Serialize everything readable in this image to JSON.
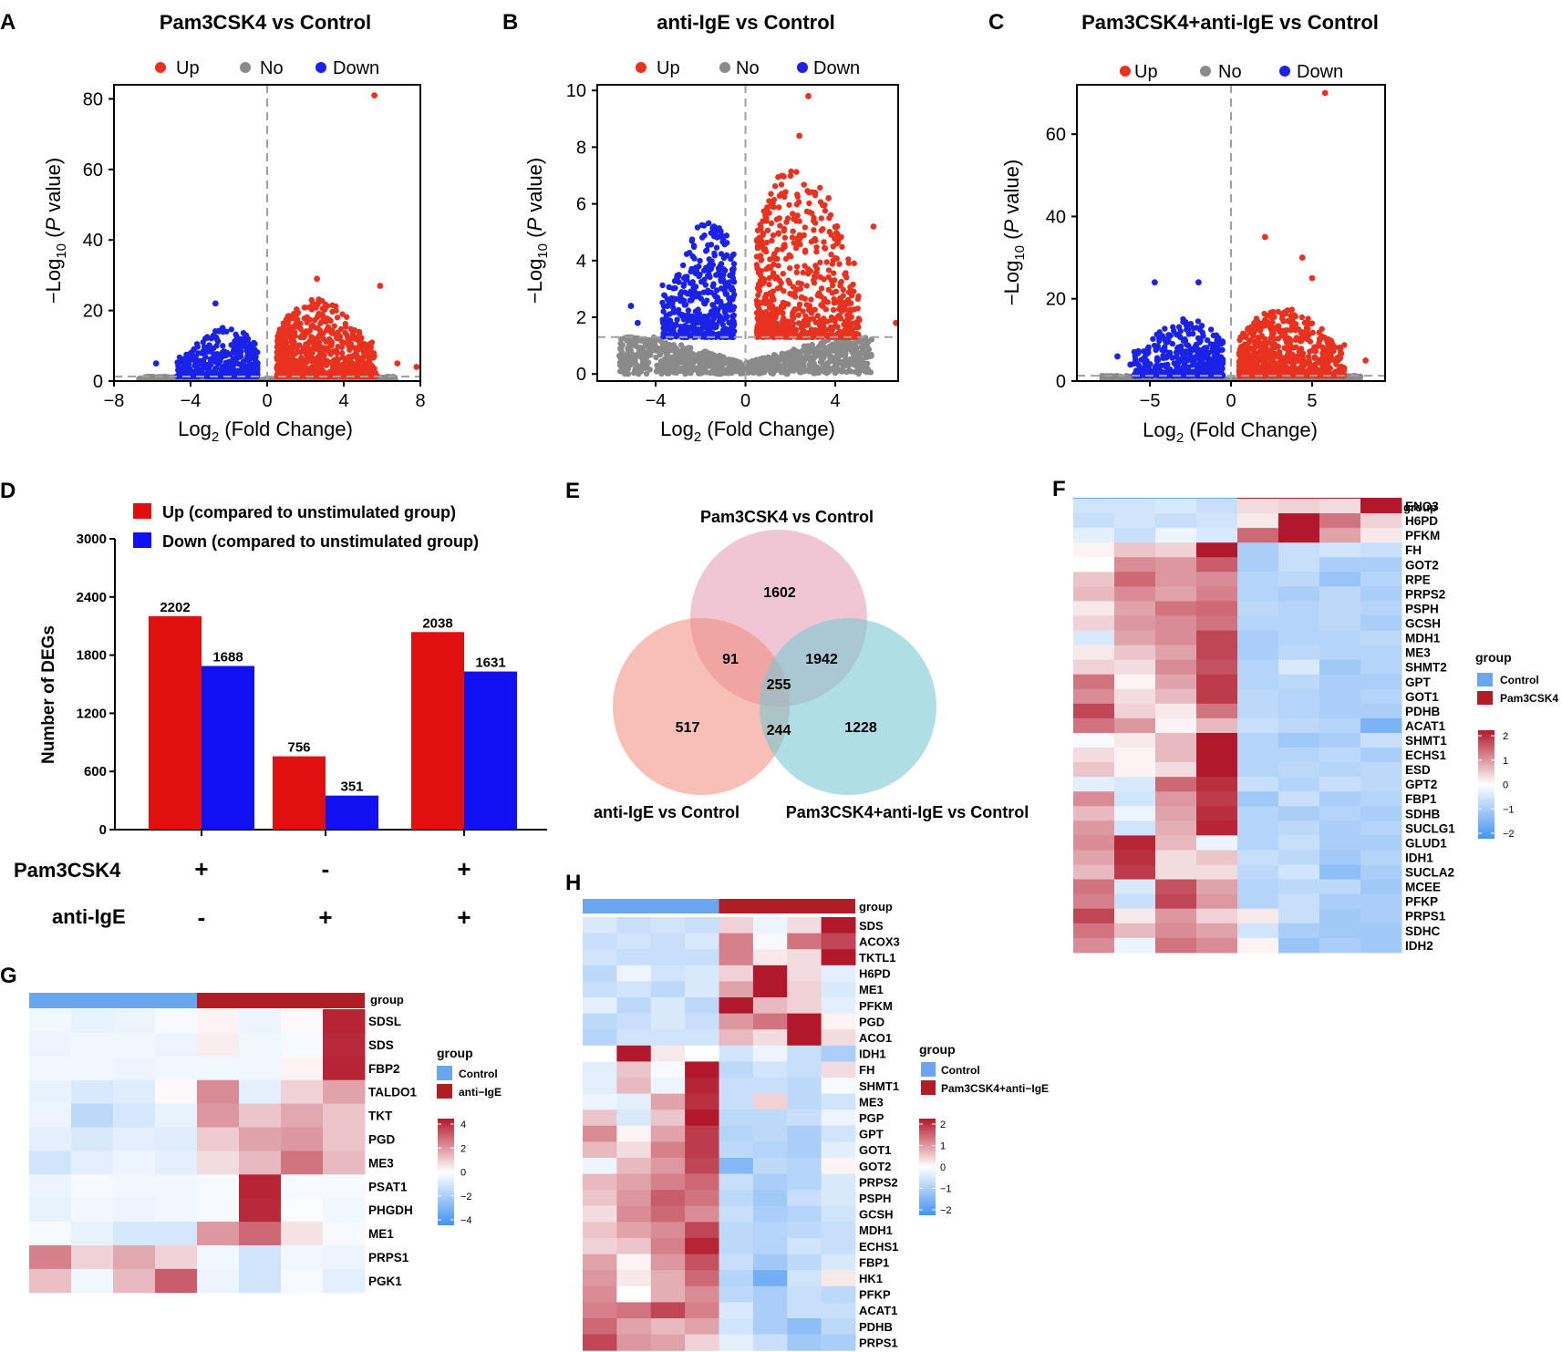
{
  "colors": {
    "up": "#e8321f",
    "no": "#8a8a8a",
    "down": "#1a22e6",
    "bar_up": "#e01010",
    "bar_down": "#1010f0",
    "control": "#6aa6ee",
    "treat": "#b11d24",
    "venn_a": "#e8a0b8",
    "venn_b": "#f08a78",
    "venn_c": "#7cc8d4"
  },
  "volcano_legend": {
    "up": "Up",
    "no": "No",
    "down": "Down"
  },
  "volcanoes": [
    {
      "letter": "A",
      "title": "Pam3CSK4 vs Control",
      "xlabel_main": "Log",
      "xlabel_sub": "2",
      "xlabel_rest": " (Fold Change)",
      "ylabel_a": "−Log",
      "ylabel_sub": "10",
      "ylabel_b": " (",
      "ylabel_p": "P",
      "ylabel_c": " value)",
      "xlim": [
        -8,
        8
      ],
      "ylim": [
        0,
        84
      ],
      "xticks": [
        -8,
        -4,
        0,
        4,
        8
      ],
      "xtick_labels": [
        "−8",
        "−4",
        "0",
        "4",
        "8"
      ],
      "yticks": [
        0,
        20,
        40,
        60,
        80
      ],
      "ytick_labels": [
        "0",
        "20",
        "40",
        "60",
        "80"
      ],
      "pthresh": 1.3,
      "up_spread": 5.2,
      "up_peak": 22,
      "down_spread": 4.2,
      "down_peak": 14,
      "up_points": [
        [
          5.6,
          81
        ],
        [
          2.6,
          29
        ],
        [
          5.9,
          27
        ],
        [
          7.8,
          4
        ],
        [
          6.8,
          5
        ]
      ],
      "down_points": [
        [
          -2.7,
          22
        ],
        [
          -5.8,
          5
        ],
        [
          -4.5,
          3
        ]
      ]
    },
    {
      "letter": "B",
      "title": "anti-IgE vs Control",
      "xlabel_main": "Log",
      "xlabel_sub": "2",
      "xlabel_rest": " (Fold Change)",
      "ylabel_a": "−Log",
      "ylabel_sub": "10",
      "ylabel_b": " (",
      "ylabel_p": "P",
      "ylabel_c": " value)",
      "xlim": [
        -6.6,
        6.8
      ],
      "ylim": [
        -0.25,
        10.2
      ],
      "xticks": [
        -4,
        0,
        4
      ],
      "xtick_labels": [
        "−4",
        "0",
        "4"
      ],
      "yticks": [
        0,
        2,
        4,
        6,
        8,
        10
      ],
      "ytick_labels": [
        "0",
        "2",
        "4",
        "6",
        "8",
        "10"
      ],
      "pthresh": 1.3,
      "up_spread": 4.6,
      "up_peak": 6.2,
      "down_spread": 3.2,
      "down_peak": 4.2,
      "up_points": [
        [
          2.8,
          9.8
        ],
        [
          2.4,
          8.4
        ],
        [
          3.7,
          6.2
        ],
        [
          5.7,
          5.2
        ],
        [
          6.7,
          1.8
        ]
      ],
      "down_points": [
        [
          -1.4,
          5.2
        ],
        [
          -5.1,
          2.4
        ],
        [
          -4.8,
          1.8
        ]
      ]
    },
    {
      "letter": "C",
      "title": "Pam3CSK4+anti-IgE vs Control",
      "xlabel_main": "Log",
      "xlabel_sub": "2",
      "xlabel_rest": " (Fold Change)",
      "ylabel_a": "−Log",
      "ylabel_sub": "10",
      "ylabel_b": " (",
      "ylabel_p": "P",
      "ylabel_c": " value)",
      "xlim": [
        -9.5,
        9.5
      ],
      "ylim": [
        0,
        72
      ],
      "xticks": [
        -5,
        0,
        5
      ],
      "xtick_labels": [
        "−5",
        "0",
        "5"
      ],
      "yticks": [
        0,
        20,
        40,
        60
      ],
      "ytick_labels": [
        "0",
        "20",
        "40",
        "60"
      ],
      "pthresh": 1.3,
      "up_spread": 6.5,
      "up_peak": 17,
      "down_spread": 5.5,
      "down_peak": 14,
      "up_points": [
        [
          5.8,
          70
        ],
        [
          2.1,
          35
        ],
        [
          4.4,
          30
        ],
        [
          5.0,
          25
        ],
        [
          8.3,
          5
        ]
      ],
      "down_points": [
        [
          -2.0,
          24
        ],
        [
          -4.7,
          24
        ],
        [
          -7.0,
          6
        ],
        [
          -6.2,
          4
        ]
      ]
    }
  ],
  "bar_chart": {
    "letter": "D",
    "ylabel": "Number of DEGs",
    "legend_up": "Up (compared to unstimulated group)",
    "legend_down": "Down (compared to unstimulated group)",
    "yticks": [
      0,
      600,
      1200,
      1800,
      2400,
      3000
    ],
    "ytick_labels": [
      "0",
      "600",
      "1200",
      "1800",
      "2400",
      "3000"
    ],
    "ylim": [
      0,
      3000
    ],
    "groups": [
      {
        "up": 2202,
        "down": 1688,
        "up_label": "2202",
        "down_label": "1688"
      },
      {
        "up": 756,
        "down": 351,
        "up_label": "756",
        "down_label": "351"
      },
      {
        "up": 2038,
        "down": 1631,
        "up_label": "2038",
        "down_label": "1631"
      }
    ],
    "row1_label": "Pam3CSK4",
    "row1_signs": [
      "+",
      "-",
      "+"
    ],
    "row2_label": "anti-IgE",
    "row2_signs": [
      "-",
      "+",
      "+"
    ]
  },
  "venn": {
    "letter": "E",
    "label_a": "Pam3CSK4 vs Control",
    "label_b": "anti-IgE vs Control",
    "label_c": "Pam3CSK4+anti-IgE vs Control",
    "only_a": "1602",
    "a_b": "91",
    "a_c": "1942",
    "abc": "255",
    "only_b": "517",
    "b_c": "244",
    "only_c": "1228"
  },
  "heatmaps": [
    {
      "letter": "F",
      "group_label": "group",
      "legend_title": "group",
      "legend_control": "Control",
      "legend_treat": "Pam3CSK4",
      "scale_labels": [
        "2",
        "1",
        "0",
        "−1",
        "−2"
      ],
      "scale_max": 2,
      "genes": [
        "ENO3",
        "H6PD",
        "PFKM",
        "FH",
        "GOT2",
        "RPE",
        "PRPS2",
        "PSPH",
        "GCSH",
        "MDH1",
        "ME3",
        "SHMT2",
        "GPT",
        "GOT1",
        "PDHB",
        "ACAT1",
        "SHMT1",
        "ECHS1",
        "ESD",
        "GPT2",
        "FBP1",
        "SDHB",
        "SUCLG1",
        "GLUD1",
        "IDH1",
        "SUCLA2",
        "MCEE",
        "PFKP",
        "PRPS1",
        "SDHC",
        "IDH2"
      ],
      "values": [
        [
          -0.5,
          -0.5,
          -0.4,
          -0.6,
          0.3,
          0.4,
          0.3,
          2.1
        ],
        [
          -0.6,
          -0.5,
          -0.6,
          -0.5,
          0.2,
          2.0,
          1.2,
          0.4
        ],
        [
          -0.3,
          -0.6,
          -0.2,
          -0.4,
          1.3,
          2.0,
          0.8,
          0.2
        ],
        [
          0.1,
          0.5,
          0.4,
          2.1,
          -0.9,
          -0.6,
          -0.5,
          -0.6
        ],
        [
          0.0,
          1.0,
          0.9,
          1.4,
          -0.9,
          -0.6,
          -0.9,
          -0.9
        ],
        [
          0.5,
          1.3,
          0.9,
          1.0,
          -0.8,
          -0.7,
          -1.1,
          -0.8
        ],
        [
          0.6,
          1.0,
          0.8,
          1.1,
          -0.8,
          -0.9,
          -0.7,
          -0.9
        ],
        [
          0.2,
          0.8,
          1.2,
          1.3,
          -0.7,
          -0.8,
          -0.7,
          -0.8
        ],
        [
          0.4,
          0.9,
          1.0,
          1.2,
          -0.8,
          -0.8,
          -0.7,
          -0.9
        ],
        [
          -0.4,
          0.8,
          1.0,
          1.6,
          -0.9,
          -0.8,
          -0.8,
          -0.7
        ],
        [
          0.2,
          0.5,
          0.8,
          1.6,
          -0.9,
          -0.7,
          -0.8,
          -0.8
        ],
        [
          0.4,
          0.3,
          1.0,
          1.5,
          -0.8,
          -0.4,
          -1.0,
          -0.8
        ],
        [
          1.2,
          0.1,
          0.8,
          1.7,
          -0.8,
          -0.7,
          -0.9,
          -0.9
        ],
        [
          1.0,
          0.3,
          0.6,
          1.7,
          -0.7,
          -0.8,
          -0.9,
          -0.8
        ],
        [
          1.6,
          0.4,
          0.2,
          1.2,
          -0.7,
          -0.8,
          -0.9,
          -0.9
        ],
        [
          1.2,
          0.9,
          0.1,
          0.6,
          -0.6,
          -0.7,
          -0.8,
          -1.4
        ],
        [
          -0.1,
          0.2,
          0.6,
          2.0,
          -0.8,
          -1.0,
          -0.9,
          -0.6
        ],
        [
          0.3,
          0.1,
          0.6,
          2.0,
          -0.8,
          -0.8,
          -0.7,
          -0.9
        ],
        [
          0.5,
          0.1,
          0.3,
          2.0,
          -0.8,
          -0.7,
          -0.8,
          -0.7
        ],
        [
          -0.3,
          -0.4,
          1.3,
          1.8,
          -0.6,
          -0.8,
          -0.6,
          -0.7
        ],
        [
          1.0,
          -0.5,
          0.9,
          1.7,
          -1.0,
          -0.6,
          -0.9,
          -0.8
        ],
        [
          0.6,
          -0.2,
          0.8,
          1.8,
          -0.8,
          -0.9,
          -0.8,
          -0.9
        ],
        [
          0.9,
          -0.5,
          0.7,
          1.9,
          -0.8,
          -0.7,
          -0.9,
          -0.8
        ],
        [
          1.0,
          1.9,
          0.6,
          -0.2,
          -0.8,
          -0.6,
          -0.9,
          -0.9
        ],
        [
          0.8,
          1.8,
          0.3,
          0.5,
          -0.6,
          -0.7,
          -1.0,
          -0.8
        ],
        [
          0.6,
          1.7,
          0.3,
          0.3,
          -0.7,
          -0.5,
          -1.2,
          -0.9
        ],
        [
          1.2,
          -0.4,
          1.5,
          0.8,
          -0.8,
          -0.7,
          -0.7,
          -1.0
        ],
        [
          1.1,
          -0.6,
          1.6,
          0.9,
          -0.8,
          -0.6,
          -0.9,
          -0.9
        ],
        [
          1.6,
          0.2,
          0.9,
          0.4,
          0.2,
          -0.6,
          -1.0,
          -0.9
        ],
        [
          1.2,
          0.6,
          1.0,
          0.8,
          -0.5,
          -0.9,
          -1.0,
          -1.0
        ],
        [
          1.0,
          -0.2,
          1.2,
          1.0,
          0.1,
          -1.1,
          -0.9,
          -1.0
        ]
      ]
    },
    {
      "letter": "G",
      "group_label": "group",
      "legend_title": "group",
      "legend_control": "Control",
      "legend_treat": "anti−IgE",
      "scale_labels": [
        "4",
        "2",
        "0",
        "−2",
        "−4"
      ],
      "scale_max": 4,
      "genes": [
        "SDSL",
        "SDS",
        "FBP2",
        "TALDO1",
        "TKT",
        "PGD",
        "ME3",
        "PSAT1",
        "PHGDH",
        "ME1",
        "PRPS1",
        "PGK1"
      ],
      "values": [
        [
          -0.3,
          -0.5,
          -0.4,
          -0.2,
          0.2,
          -0.4,
          0.1,
          3.8
        ],
        [
          -0.4,
          -0.3,
          -0.3,
          -0.4,
          0.3,
          -0.3,
          -0.2,
          3.7
        ],
        [
          -0.3,
          -0.3,
          -0.4,
          -0.3,
          -0.3,
          -0.3,
          0.2,
          3.8
        ],
        [
          -0.5,
          -0.8,
          -0.7,
          0.1,
          2.0,
          -0.6,
          0.8,
          1.6
        ],
        [
          -0.4,
          -1.4,
          -0.9,
          -0.5,
          1.8,
          1.0,
          1.5,
          1.0
        ],
        [
          -0.6,
          -0.8,
          -0.6,
          -0.7,
          0.9,
          1.6,
          1.8,
          1.0
        ],
        [
          -1.0,
          -0.6,
          -0.4,
          -0.6,
          0.6,
          1.2,
          2.4,
          1.2
        ],
        [
          -0.4,
          -0.2,
          -0.3,
          -0.3,
          -0.2,
          3.8,
          -0.2,
          -0.2
        ],
        [
          -0.5,
          -0.3,
          -0.4,
          -0.3,
          -0.2,
          3.7,
          -0.1,
          -0.3
        ],
        [
          -0.2,
          -0.5,
          -0.9,
          -0.9,
          1.8,
          2.6,
          0.5,
          -0.2
        ],
        [
          2.2,
          0.8,
          1.5,
          0.8,
          -0.3,
          -1.0,
          -0.3,
          -0.4
        ],
        [
          1.1,
          -0.3,
          1.2,
          2.8,
          -0.4,
          -1.0,
          -0.2,
          -0.6
        ]
      ]
    },
    {
      "letter": "H",
      "group_label": "group",
      "legend_title": "group",
      "legend_control": "Control",
      "legend_treat": "Pam3CSK4+anti−IgE",
      "scale_labels": [
        "2",
        "1",
        "0",
        "−1",
        "−2"
      ],
      "scale_max": 2,
      "genes": [
        "SDS",
        "ACOX3",
        "TKTL1",
        "H6PD",
        "ME1",
        "PFKM",
        "PGD",
        "ACO1",
        "IDH1",
        "FH",
        "SHMT1",
        "ME3",
        "PGP",
        "GPT",
        "GOT1",
        "GOT2",
        "PRPS2",
        "PSPH",
        "GCSH",
        "MDH1",
        "ECHS1",
        "FBP1",
        "HK1",
        "PFKP",
        "ACAT1",
        "PDHB",
        "PRPS1"
      ],
      "values": [
        [
          -0.4,
          -0.6,
          -0.5,
          -0.6,
          0.4,
          -0.2,
          0.3,
          2.0
        ],
        [
          -0.6,
          -0.5,
          -0.6,
          -0.4,
          1.1,
          -0.1,
          1.2,
          1.6
        ],
        [
          -0.5,
          -0.6,
          -0.6,
          -0.6,
          1.1,
          0.2,
          0.3,
          2.0
        ],
        [
          -0.7,
          -0.2,
          -0.5,
          -0.4,
          0.4,
          2.0,
          0.3,
          -0.3
        ],
        [
          -0.6,
          -0.5,
          -0.7,
          -0.4,
          0.8,
          2.0,
          0.4,
          -0.4
        ],
        [
          -0.3,
          -0.7,
          -0.4,
          -0.7,
          2.0,
          0.6,
          0.4,
          -0.3
        ],
        [
          -0.7,
          -0.6,
          -0.4,
          -0.6,
          0.9,
          1.2,
          2.0,
          0.1
        ],
        [
          -0.8,
          -0.5,
          -0.5,
          -0.5,
          0.6,
          0.3,
          2.0,
          0.3
        ],
        [
          0.0,
          2.0,
          0.2,
          0.0,
          -0.5,
          -0.2,
          -0.6,
          -0.9
        ],
        [
          -0.3,
          0.5,
          -0.1,
          2.0,
          -0.7,
          -0.5,
          -0.6,
          0.3
        ],
        [
          -0.3,
          0.6,
          -0.2,
          1.9,
          -0.6,
          -0.6,
          -0.7,
          -0.1
        ],
        [
          -0.2,
          -0.3,
          0.8,
          1.8,
          -0.6,
          0.4,
          -0.7,
          -0.5
        ],
        [
          0.5,
          -0.4,
          0.5,
          2.0,
          -0.7,
          -0.7,
          -0.6,
          -0.2
        ],
        [
          1.0,
          0.1,
          0.8,
          1.7,
          -0.8,
          -0.7,
          -0.9,
          -0.5
        ],
        [
          0.6,
          0.3,
          1.1,
          1.7,
          -0.7,
          -0.8,
          -0.9,
          -0.3
        ],
        [
          -0.2,
          0.6,
          0.9,
          1.6,
          -1.3,
          -0.7,
          -0.8,
          0.1
        ],
        [
          0.6,
          0.8,
          1.1,
          1.3,
          -0.6,
          -0.9,
          -0.8,
          -0.4
        ],
        [
          0.5,
          0.9,
          1.4,
          1.2,
          -0.7,
          -1.0,
          -0.6,
          -0.4
        ],
        [
          0.3,
          1.0,
          1.3,
          1.0,
          -0.6,
          -0.9,
          -0.8,
          -0.5
        ],
        [
          0.5,
          0.8,
          1.0,
          1.6,
          -0.7,
          -0.8,
          -0.7,
          -0.6
        ],
        [
          0.4,
          0.5,
          1.1,
          1.9,
          -0.7,
          -0.8,
          -0.5,
          -0.6
        ],
        [
          0.8,
          0.1,
          0.9,
          1.5,
          -0.6,
          -1.0,
          -0.7,
          -0.4
        ],
        [
          0.9,
          0.2,
          0.7,
          1.3,
          -0.8,
          -1.5,
          -0.5,
          0.2
        ],
        [
          1.0,
          0.0,
          0.7,
          1.0,
          -0.7,
          -0.9,
          -0.6,
          -0.7
        ],
        [
          1.1,
          1.2,
          1.6,
          1.1,
          -0.4,
          -0.9,
          -0.6,
          -0.6
        ],
        [
          1.3,
          0.8,
          0.6,
          0.8,
          -0.5,
          -0.9,
          -1.2,
          -0.7
        ],
        [
          1.6,
          0.9,
          0.8,
          0.4,
          -0.3,
          -0.6,
          -1.0,
          -0.9
        ]
      ]
    }
  ]
}
